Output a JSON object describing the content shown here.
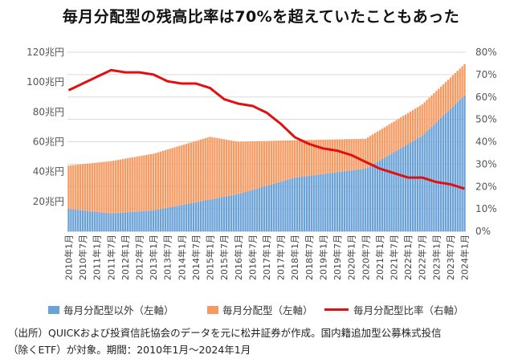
{
  "title": "毎月分配型の残高比率は70%を超えていたこともあった",
  "chart_data": {
    "type": "bar",
    "stacked": true,
    "x_start": "2010年1月",
    "x_end": "2024年1月",
    "tick_labels": [
      "2010年1月",
      "2010年7月",
      "2011年1月",
      "2011年7月",
      "2012年1月",
      "2012年7月",
      "2013年1月",
      "2013年7月",
      "2014年1月",
      "2014年7月",
      "2015年1月",
      "2015年7月",
      "2016年1月",
      "2016年7月",
      "2017年1月",
      "2017年7月",
      "2018年1月",
      "2018年7月",
      "2019年1月",
      "2019年7月",
      "2020年1月",
      "2020年7月",
      "2021年1月",
      "2021年7月",
      "2022年1月",
      "2022年7月",
      "2023年1月",
      "2023年7月",
      "2024年1月"
    ],
    "y_left_ticks": [
      "20兆円",
      "40兆円",
      "60兆円",
      "80兆円",
      "100兆円",
      "120兆円"
    ],
    "y_left_lim": [
      0,
      120
    ],
    "y_right_ticks": [
      "0%",
      "10%",
      "20%",
      "30%",
      "40%",
      "50%",
      "60%",
      "70%",
      "80%"
    ],
    "y_right_lim": [
      0,
      80
    ],
    "grid": true,
    "legend_position": "bottom",
    "series": [
      {
        "name": "毎月分配型以外（左軸）",
        "kind": "bar",
        "axis": "left",
        "color": "#6aa2d8",
        "anchor_dates": [
          "2010年1月",
          "2011年7月",
          "2013年1月",
          "2016年1月",
          "2018年1月",
          "2020年7月",
          "2022年7月",
          "2024年1月"
        ],
        "anchor_values": [
          15,
          12,
          14,
          25,
          36,
          42,
          64,
          91
        ]
      },
      {
        "name": "毎月分配型（左軸）",
        "kind": "bar",
        "axis": "left",
        "color": "#f79a62",
        "anchor_dates": [
          "2010年1月",
          "2011年7月",
          "2013年1月",
          "2015年1月",
          "2016年1月",
          "2018年1月",
          "2020年7月",
          "2022年7月",
          "2024年1月"
        ],
        "anchor_values": [
          29,
          35,
          38,
          42,
          35,
          25,
          20,
          21,
          21
        ]
      },
      {
        "name": "毎月分配型比率（右軸）",
        "kind": "line",
        "axis": "right",
        "color": "#e01010",
        "anchor_dates": [
          "2010年1月",
          "2010年7月",
          "2011年1月",
          "2011年7月",
          "2012年1月",
          "2012年7月",
          "2013年1月",
          "2013年7月",
          "2014年1月",
          "2014年7月",
          "2015年1月",
          "2015年7月",
          "2016年1月",
          "2016年7月",
          "2017年1月",
          "2017年7月",
          "2018年1月",
          "2018年7月",
          "2019年1月",
          "2019年7月",
          "2020年1月",
          "2020年7月",
          "2021年1月",
          "2021年7月",
          "2022年1月",
          "2022年7月",
          "2023年1月",
          "2023年7月",
          "2024年1月"
        ],
        "anchor_values": [
          63,
          66,
          69,
          72,
          71,
          71,
          70,
          67,
          66,
          66,
          64,
          59,
          57,
          56,
          53,
          48,
          42,
          39,
          37,
          36,
          34,
          31,
          28,
          26,
          24,
          24,
          22,
          21,
          19
        ]
      }
    ]
  },
  "note": {
    "line1": "（出所）QUICKおよび投資信託協会のデータを元に松井証券が作成。国内籍追加型公募株式投信",
    "line2": "（除くETF）が対象。期間：2010年1月～2024年1月"
  }
}
